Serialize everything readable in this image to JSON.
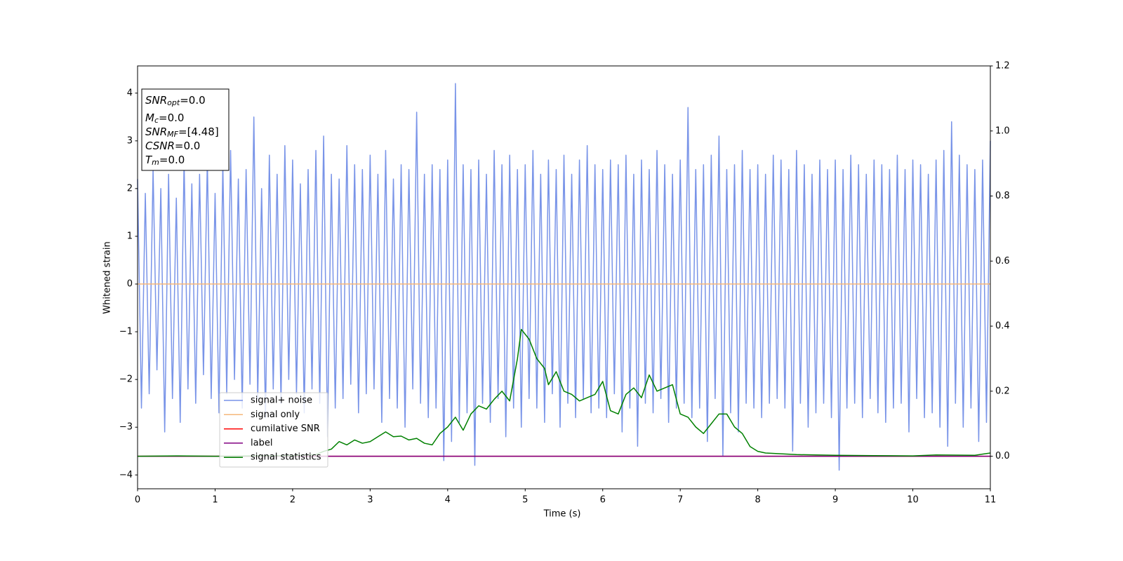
{
  "chart_data": {
    "type": "line",
    "xlabel": "Time (s)",
    "ylabel": "Whitened strain",
    "xlim": [
      0,
      11
    ],
    "xticks": [
      0,
      1,
      2,
      3,
      4,
      5,
      6,
      7,
      8,
      9,
      10,
      11
    ],
    "ylim": [
      -4.29,
      4.57
    ],
    "yticks": [
      {
        "value": -4,
        "label": "−4"
      },
      {
        "value": -3,
        "label": "−3"
      },
      {
        "value": -2,
        "label": "−2"
      },
      {
        "value": -1,
        "label": "−1"
      },
      0,
      1,
      2,
      3,
      4
    ],
    "y2lim": [
      -0.1,
      1.2
    ],
    "y2ticks": [
      {
        "value": 0,
        "label": "0.0"
      },
      0.2,
      0.4,
      0.6,
      0.8,
      {
        "value": 1,
        "label": "1.0"
      },
      1.2
    ],
    "legend": "lower left",
    "annotation": [
      {
        "text": "SNR",
        "sub": "opt",
        "rest": "=0.0"
      },
      {
        "text": "M",
        "sub": "c",
        "rest": "=0.0"
      },
      {
        "text": "SNR",
        "sub": "MF",
        "rest": "=[4.48]"
      },
      {
        "text": "CSNR",
        "rest": "=0.0"
      },
      {
        "text": "T",
        "sub": "m",
        "rest": "=0.0"
      }
    ],
    "series": [
      {
        "name": "signal+ noise",
        "color": "#7994e8",
        "x": [
          0,
          0.05,
          0.1,
          0.15,
          0.2,
          0.25,
          0.3,
          0.35,
          0.4,
          0.45,
          0.5,
          0.55,
          0.6,
          0.65,
          0.7,
          0.75,
          0.8,
          0.85,
          0.9,
          0.95,
          1,
          1.05,
          1.1,
          1.15,
          1.2,
          1.25,
          1.3,
          1.35,
          1.4,
          1.45,
          1.5,
          1.55,
          1.6,
          1.65,
          1.7,
          1.75,
          1.8,
          1.85,
          1.9,
          1.95,
          2,
          2.05,
          2.1,
          2.15,
          2.2,
          2.25,
          2.3,
          2.35,
          2.4,
          2.45,
          2.5,
          2.55,
          2.6,
          2.65,
          2.7,
          2.75,
          2.8,
          2.85,
          2.9,
          2.95,
          3,
          3.05,
          3.1,
          3.15,
          3.2,
          3.25,
          3.3,
          3.35,
          3.4,
          3.45,
          3.5,
          3.55,
          3.6,
          3.65,
          3.7,
          3.75,
          3.8,
          3.85,
          3.9,
          3.95,
          4,
          4.05,
          4.1,
          4.15,
          4.2,
          4.25,
          4.3,
          4.35,
          4.4,
          4.45,
          4.5,
          4.55,
          4.6,
          4.65,
          4.7,
          4.75,
          4.8,
          4.85,
          4.9,
          4.95,
          5,
          5.05,
          5.1,
          5.15,
          5.2,
          5.25,
          5.3,
          5.35,
          5.4,
          5.45,
          5.5,
          5.55,
          5.6,
          5.65,
          5.7,
          5.75,
          5.8,
          5.85,
          5.9,
          5.95,
          6,
          6.05,
          6.1,
          6.15,
          6.2,
          6.25,
          6.3,
          6.35,
          6.4,
          6.45,
          6.5,
          6.55,
          6.6,
          6.65,
          6.7,
          6.75,
          6.8,
          6.85,
          6.9,
          6.95,
          7,
          7.05,
          7.1,
          7.15,
          7.2,
          7.25,
          7.3,
          7.35,
          7.4,
          7.45,
          7.5,
          7.55,
          7.6,
          7.65,
          7.7,
          7.75,
          7.8,
          7.85,
          7.9,
          7.95,
          8,
          8.05,
          8.1,
          8.15,
          8.2,
          8.25,
          8.3,
          8.35,
          8.4,
          8.45,
          8.5,
          8.55,
          8.6,
          8.65,
          8.7,
          8.75,
          8.8,
          8.85,
          8.9,
          8.95,
          9,
          9.05,
          9.1,
          9.15,
          9.2,
          9.25,
          9.3,
          9.35,
          9.4,
          9.45,
          9.5,
          9.55,
          9.6,
          9.65,
          9.7,
          9.75,
          9.8,
          9.85,
          9.9,
          9.95,
          10,
          10.05,
          10.1,
          10.15,
          10.2,
          10.25,
          10.3,
          10.35,
          10.4,
          10.45,
          10.5,
          10.55,
          10.6,
          10.65,
          10.7,
          10.75,
          10.8,
          10.85,
          10.9,
          10.95,
          11
        ],
        "values": [
          2.2,
          -2.6,
          1.9,
          -2.3,
          2.4,
          -1.8,
          2.0,
          -3.1,
          2.3,
          -2.4,
          1.8,
          -2.9,
          2.6,
          -2.2,
          2.1,
          -2.5,
          2.3,
          -1.9,
          2.6,
          -2.4,
          1.9,
          -2.7,
          2.5,
          -2.3,
          2.8,
          -2.0,
          2.2,
          -2.6,
          2.4,
          -2.1,
          3.5,
          -2.4,
          2.0,
          -2.8,
          2.7,
          -2.2,
          2.3,
          -2.5,
          2.9,
          -2.0,
          2.6,
          -2.3,
          2.1,
          -2.7,
          2.4,
          -2.2,
          2.8,
          -2.5,
          3.1,
          -3.2,
          2.3,
          -2.6,
          2.2,
          -2.4,
          2.9,
          -2.1,
          2.5,
          -2.7,
          2.4,
          -2.3,
          2.7,
          -2.2,
          2.3,
          -2.9,
          2.8,
          -2.4,
          2.2,
          -2.6,
          2.5,
          -3.0,
          2.4,
          -2.2,
          3.6,
          -2.5,
          2.3,
          -2.8,
          2.5,
          -2.6,
          2.4,
          -3.7,
          2.6,
          -3.3,
          4.2,
          -2.9,
          2.5,
          -2.7,
          2.4,
          -3.8,
          2.6,
          -2.5,
          2.3,
          -2.9,
          2.8,
          -2.4,
          2.5,
          -3.2,
          2.7,
          -2.6,
          2.4,
          -3.0,
          2.5,
          -2.4,
          2.8,
          -2.6,
          2.3,
          -2.9,
          2.6,
          -2.3,
          2.4,
          -3.0,
          2.7,
          -2.5,
          2.3,
          -2.8,
          2.6,
          -2.4,
          2.9,
          -2.7,
          2.5,
          -2.6,
          2.4,
          -2.8,
          2.6,
          -2.3,
          2.5,
          -3.1,
          2.7,
          -2.6,
          2.3,
          -3.4,
          2.6,
          -2.5,
          2.4,
          -2.7,
          2.8,
          -2.4,
          2.5,
          -2.9,
          2.3,
          -2.6,
          2.6,
          -2.5,
          3.7,
          -2.8,
          2.4,
          -2.6,
          2.5,
          -3.3,
          2.7,
          -2.4,
          3.1,
          -3.6,
          2.4,
          -2.7,
          2.5,
          -3.1,
          2.8,
          -2.5,
          2.4,
          -2.6,
          2.5,
          -2.8,
          2.3,
          -2.5,
          2.7,
          -2.4,
          2.6,
          -2.6,
          2.4,
          -3.5,
          2.8,
          -2.5,
          2.5,
          -3.0,
          2.3,
          -2.7,
          2.6,
          -2.5,
          2.4,
          -2.8,
          2.6,
          -3.9,
          2.4,
          -2.6,
          2.7,
          -2.5,
          2.5,
          -2.8,
          2.3,
          -2.4,
          2.6,
          -2.7,
          2.5,
          -2.9,
          2.4,
          -2.6,
          2.7,
          -2.5,
          2.4,
          -3.1,
          2.6,
          -2.4,
          2.5,
          -2.8,
          2.3,
          -2.7,
          2.6,
          -3.0,
          2.8,
          -3.4,
          3.4,
          -2.5,
          2.7,
          -3.0,
          2.5,
          -2.6,
          2.4,
          -3.3,
          2.6,
          -2.9,
          3.0
        ]
      },
      {
        "name": "signal only",
        "color": "#f5b77a",
        "x": [
          0,
          11
        ],
        "values": [
          0,
          0
        ]
      },
      {
        "name": "cumilative SNR",
        "color": "#ff0000",
        "axis": "y2",
        "x": [
          0,
          11
        ],
        "values": [
          0,
          0
        ]
      },
      {
        "name": "label",
        "color": "#800080",
        "axis": "y2",
        "x": [
          0,
          11
        ],
        "values": [
          0,
          0
        ]
      },
      {
        "name": "signal statistics",
        "color": "#008000",
        "axis": "y2",
        "x": [
          0,
          0.5,
          1,
          1.5,
          2,
          2.3,
          2.4,
          2.5,
          2.6,
          2.7,
          2.8,
          2.9,
          3.0,
          3.1,
          3.2,
          3.3,
          3.4,
          3.5,
          3.6,
          3.7,
          3.8,
          3.9,
          4.0,
          4.1,
          4.2,
          4.3,
          4.4,
          4.5,
          4.6,
          4.7,
          4.8,
          4.9,
          4.95,
          5.05,
          5.15,
          5.25,
          5.3,
          5.4,
          5.5,
          5.6,
          5.7,
          5.8,
          5.9,
          6.0,
          6.1,
          6.2,
          6.3,
          6.4,
          6.5,
          6.6,
          6.7,
          6.8,
          6.9,
          7.0,
          7.1,
          7.2,
          7.3,
          7.4,
          7.5,
          7.6,
          7.7,
          7.8,
          7.9,
          8.0,
          8.1,
          8.5,
          9.0,
          9.5,
          10.0,
          10.3,
          10.8,
          11
        ],
        "values": [
          0,
          0.001,
          0,
          0.001,
          0.002,
          0.005,
          0.015,
          0.022,
          0.045,
          0.035,
          0.05,
          0.04,
          0.045,
          0.06,
          0.075,
          0.06,
          0.062,
          0.05,
          0.055,
          0.04,
          0.035,
          0.07,
          0.09,
          0.12,
          0.08,
          0.13,
          0.155,
          0.145,
          0.175,
          0.2,
          0.17,
          0.3,
          0.39,
          0.36,
          0.3,
          0.27,
          0.22,
          0.26,
          0.2,
          0.19,
          0.17,
          0.18,
          0.19,
          0.23,
          0.14,
          0.13,
          0.19,
          0.21,
          0.18,
          0.25,
          0.2,
          0.21,
          0.22,
          0.13,
          0.12,
          0.09,
          0.07,
          0.1,
          0.13,
          0.13,
          0.09,
          0.07,
          0.03,
          0.015,
          0.01,
          0.005,
          0.003,
          0.002,
          0.001,
          0.004,
          0.003,
          0.01
        ]
      }
    ]
  }
}
